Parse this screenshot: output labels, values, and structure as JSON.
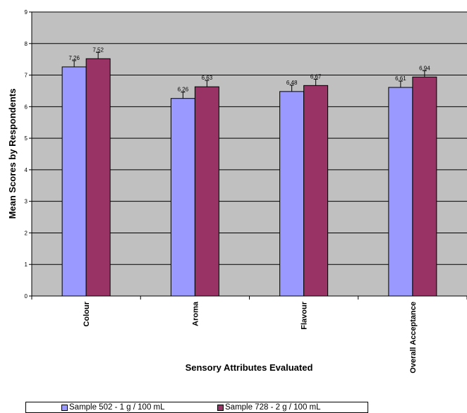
{
  "chart_data": {
    "type": "bar",
    "title": "",
    "xlabel": "Sensory Attributes Evaluated",
    "ylabel": "Mean Scores by Respondents",
    "categories": [
      "Colour",
      "Aroma",
      "Flavour",
      "Overall Acceptance"
    ],
    "series": [
      {
        "name": "Sample 502 - 1 g / 100 mL",
        "values": [
          7.26,
          6.26,
          6.48,
          6.61
        ],
        "errors": [
          0.2,
          0.2,
          0.2,
          0.2
        ]
      },
      {
        "name": "Sample 728 - 2 g / 100 mL",
        "values": [
          7.52,
          6.63,
          6.67,
          6.94
        ],
        "errors": [
          0.2,
          0.2,
          0.2,
          0.2
        ]
      }
    ],
    "data_labels": [
      [
        "7.26",
        "6.26",
        "6.48",
        "6.61"
      ],
      [
        "7.52",
        "6.63",
        "6.67",
        "6.94"
      ]
    ],
    "yticks": [
      "0",
      "1",
      "2",
      "3",
      "4",
      "5",
      "6",
      "7",
      "8",
      "9"
    ],
    "ylim": [
      0,
      9
    ],
    "grid": true,
    "legend_position": "bottom",
    "colors": {
      "plot_background": "#c0c0c0",
      "series_1": "#9999ff",
      "series_2": "#993366",
      "grid": "#000000"
    }
  }
}
